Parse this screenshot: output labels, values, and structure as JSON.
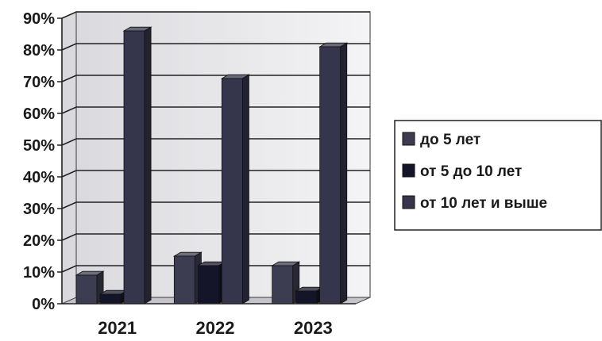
{
  "chart_data": {
    "type": "bar",
    "categories": [
      "2021",
      "2022",
      "2023"
    ],
    "series": [
      {
        "name": "до 5 лет",
        "values": [
          9,
          15,
          12
        ],
        "color": "#3d3d52"
      },
      {
        "name": "от 5 до 10 лет",
        "values": [
          3,
          12,
          4
        ],
        "color": "#15152a"
      },
      {
        "name": "от 10 лет и выше",
        "values": [
          86,
          71,
          81
        ],
        "color": "#35354c"
      }
    ],
    "y_ticks": [
      "0%",
      "10%",
      "20%",
      "30%",
      "40%",
      "50%",
      "60%",
      "70%",
      "80%",
      "90%"
    ],
    "ylim": [
      0,
      90
    ],
    "y_unit": "%",
    "grid": true,
    "legend_position": "right",
    "style": "3d-column"
  }
}
